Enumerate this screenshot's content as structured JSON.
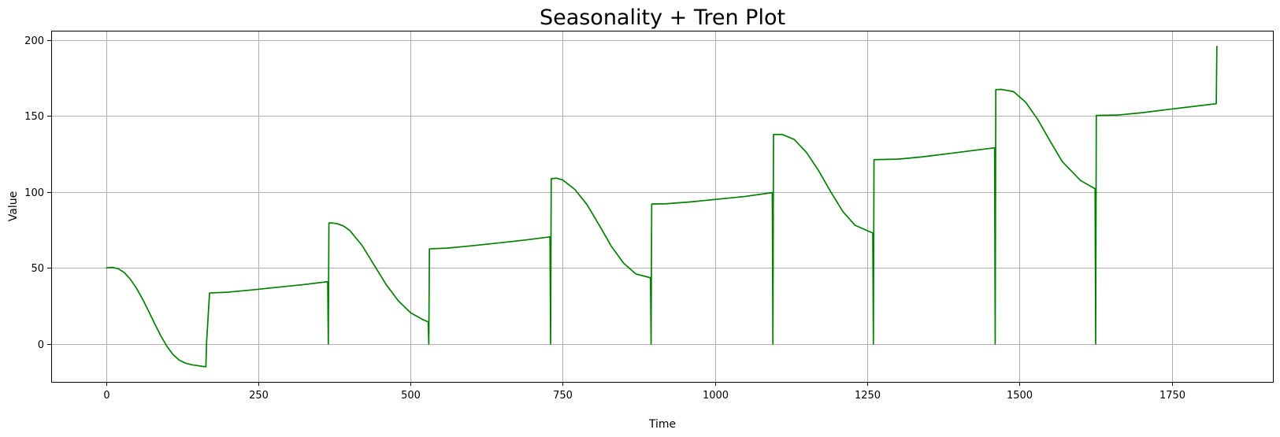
{
  "chart_data": {
    "type": "line",
    "title": "Seasonality + Tren Plot",
    "xlabel": "Time",
    "ylabel": "Value",
    "xlim": [
      -90,
      1916
    ],
    "ylim": [
      -25,
      206
    ],
    "xticks": [
      0,
      250,
      500,
      750,
      1000,
      1250,
      1500,
      1750
    ],
    "yticks": [
      0,
      50,
      100,
      150,
      200
    ],
    "grid": true,
    "legend": "none",
    "line_color": "#008000",
    "series": [
      {
        "x": [
          0,
          10,
          20,
          30,
          40,
          50,
          60,
          70,
          80,
          90,
          100,
          110,
          120,
          130,
          140,
          150,
          160,
          164,
          165,
          170,
          200,
          240,
          280,
          320,
          364,
          365,
          366,
          370,
          380,
          390,
          400,
          420,
          440,
          460,
          480,
          500,
          520,
          529,
          530,
          531,
          560,
          600,
          640,
          690,
          729,
          730,
          731,
          740,
          750,
          770,
          790,
          810,
          830,
          850,
          870,
          894,
          895,
          896,
          920,
          960,
          1000,
          1050,
          1094,
          1095,
          1096,
          1110,
          1130,
          1150,
          1170,
          1190,
          1210,
          1230,
          1259,
          1260,
          1261,
          1300,
          1340,
          1390,
          1459,
          1460,
          1461,
          1470,
          1490,
          1510,
          1530,
          1550,
          1570,
          1600,
          1624,
          1625,
          1626,
          1660,
          1700,
          1750,
          1823,
          1824
        ],
        "values": [
          50.0,
          50.3,
          49.5,
          46.9,
          42.5,
          36.6,
          29.5,
          21.5,
          13.2,
          5.3,
          -1.6,
          -7.0,
          -10.6,
          -12.6,
          -13.7,
          -14.3,
          -14.9,
          -15.0,
          0,
          33.5,
          34.0,
          35.5,
          37.2,
          38.8,
          40.9,
          0,
          79.5,
          79.6,
          79.0,
          77.5,
          74.7,
          65.0,
          52.0,
          39.0,
          28.3,
          20.5,
          16.0,
          14.5,
          0,
          62.5,
          63.0,
          64.5,
          66.2,
          68.4,
          70.4,
          0,
          108.7,
          109.0,
          107.8,
          101.5,
          91.5,
          78.0,
          64.0,
          53.0,
          46.0,
          43.5,
          0,
          92.0,
          92.2,
          93.4,
          95.0,
          97.0,
          99.5,
          0,
          137.7,
          137.8,
          134.5,
          126.0,
          114.0,
          100.0,
          87.0,
          78.0,
          72.9,
          0,
          121.2,
          121.5,
          123.0,
          125.5,
          129.0,
          0,
          167.2,
          167.4,
          166.0,
          159.0,
          147.5,
          133.5,
          120.0,
          107.5,
          102.0,
          0,
          150.3,
          150.5,
          152.0,
          154.5,
          158.0,
          196.0
        ]
      }
    ]
  }
}
